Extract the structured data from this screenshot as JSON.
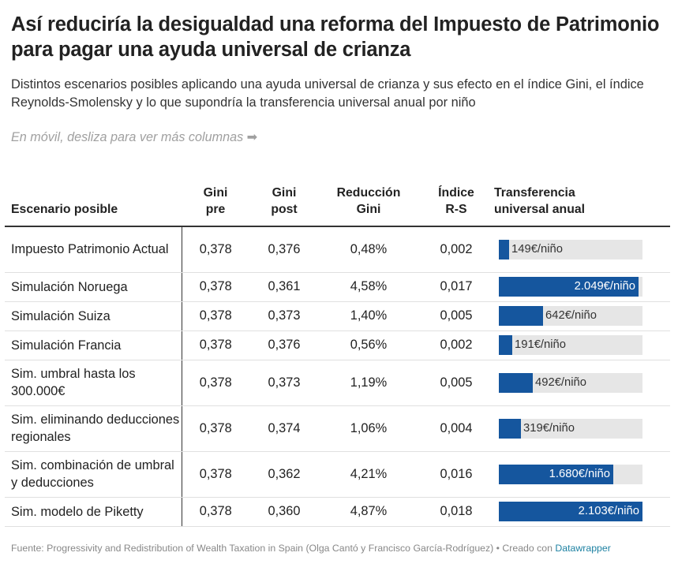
{
  "title": "Así reduciría la desigualdad una reforma del Impuesto de Patrimonio para pagar una ayuda universal de crianza",
  "subtitle": "Distintos escenarios posibles aplicando una ayuda universal de crianza y sus efecto en el índice Gini, el índice Reynolds-Smolensky y lo que supondría la transferencia universal anual por niño",
  "hint": "En móvil, desliza para ver más columnas ➡",
  "columns": {
    "scenario": "Escenario posible",
    "gini_pre_1": "Gini",
    "gini_pre_2": "pre",
    "gini_post_1": "Gini",
    "gini_post_2": "post",
    "reduccion_1": "Reducción",
    "reduccion_2": "Gini",
    "indice_1": "Índice",
    "indice_2": "R-S",
    "transfer_1": "Transferencia",
    "transfer_2": "universal anual"
  },
  "bar_color": "#15569e",
  "bar_max": 2103,
  "rows": [
    {
      "scenario": "Impuesto Patrimonio Actual",
      "gini_pre": "0,378",
      "gini_post": "0,376",
      "reduccion": "0,48%",
      "indice": "0,002",
      "transfer_value": 149,
      "transfer_label": "149€/niño"
    },
    {
      "scenario": "Simulación Noruega",
      "gini_pre": "0,378",
      "gini_post": "0,361",
      "reduccion": "4,58%",
      "indice": "0,017",
      "transfer_value": 2049,
      "transfer_label": "2.049€/niño"
    },
    {
      "scenario": "Simulación Suiza",
      "gini_pre": "0,378",
      "gini_post": "0,373",
      "reduccion": "1,40%",
      "indice": "0,005",
      "transfer_value": 642,
      "transfer_label": "642€/niño"
    },
    {
      "scenario": "Simulación Francia",
      "gini_pre": "0,378",
      "gini_post": "0,376",
      "reduccion": "0,56%",
      "indice": "0,002",
      "transfer_value": 191,
      "transfer_label": "191€/niño"
    },
    {
      "scenario": "Sim. umbral hasta los 300.000€",
      "gini_pre": "0,378",
      "gini_post": "0,373",
      "reduccion": "1,19%",
      "indice": "0,005",
      "transfer_value": 492,
      "transfer_label": "492€/niño"
    },
    {
      "scenario": "Sim. eliminando deducciones regionales",
      "gini_pre": "0,378",
      "gini_post": "0,374",
      "reduccion": "1,06%",
      "indice": "0,004",
      "transfer_value": 319,
      "transfer_label": "319€/niño"
    },
    {
      "scenario": "Sim. combinación de umbral y deducciones",
      "gini_pre": "0,378",
      "gini_post": "0,362",
      "reduccion": "4,21%",
      "indice": "0,016",
      "transfer_value": 1680,
      "transfer_label": "1.680€/niño"
    },
    {
      "scenario": "Sim. modelo de Piketty",
      "gini_pre": "0,378",
      "gini_post": "0,360",
      "reduccion": "4,87%",
      "indice": "0,018",
      "transfer_value": 2103,
      "transfer_label": "2.103€/niño"
    }
  ],
  "footer": {
    "source": "Fuente: Progressivity and Redistribution of Wealth Taxation in Spain (Olga Cantó y Francisco García-Rodríguez) • Creado con",
    "link": "Datawrapper"
  }
}
